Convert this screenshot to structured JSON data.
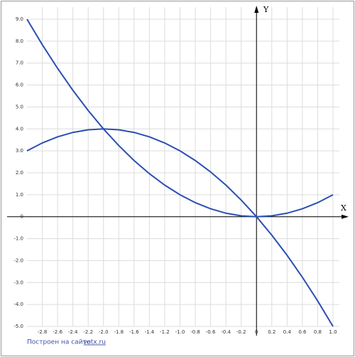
{
  "chart_data": {
    "type": "line",
    "x_label": "X",
    "y_label": "Y",
    "x": [
      -3,
      -2.8,
      -2.6,
      -2.4,
      -2.2,
      -2,
      -1.8,
      -1.6,
      -1.4,
      -1.2,
      -1,
      -0.8,
      -0.6,
      -0.4,
      -0.2,
      0,
      0.2,
      0.4,
      0.6,
      0.8,
      1
    ],
    "series": [
      {
        "color": "#2b4fb3",
        "values": [
          9,
          7.84,
          6.76,
          5.76,
          4.84,
          4,
          3.24,
          2.56,
          1.96,
          1.44,
          1,
          0.64,
          0.36,
          0.16,
          0.04,
          0,
          0.04,
          0.16,
          0.36,
          0.64,
          1
        ]
      },
      {
        "color": "#2b4fb3",
        "values": [
          3,
          3.36,
          3.64,
          3.84,
          3.96,
          4,
          3.96,
          3.84,
          3.64,
          3.36,
          3,
          2.56,
          2.04,
          1.44,
          0.76,
          0,
          -0.84,
          -1.76,
          -2.76,
          -3.84,
          -5
        ]
      }
    ],
    "xlim": [
      -3,
      1
    ],
    "ylim": [
      -5,
      9
    ],
    "xticks": [
      -2.8,
      -2.6,
      -2.4,
      -2.2,
      {
        "value": -2,
        "label": "-2.0"
      },
      -1.8,
      -1.6,
      -1.4,
      -1.2,
      {
        "value": -1,
        "label": "-1.0"
      },
      -0.8,
      -0.6,
      -0.4,
      -0.2,
      0,
      0.2,
      0.4,
      0.6,
      0.8,
      {
        "value": 1,
        "label": "1.0"
      }
    ],
    "yticks": [
      {
        "value": 9,
        "label": "9.0"
      },
      {
        "value": 8,
        "label": "8.0"
      },
      {
        "value": 7,
        "label": "7.0"
      },
      {
        "value": 6,
        "label": "6.0"
      },
      {
        "value": 5,
        "label": "5.0"
      },
      {
        "value": 4,
        "label": "4.0"
      },
      {
        "value": 3,
        "label": "3.0"
      },
      {
        "value": 2,
        "label": "2.0"
      },
      {
        "value": 1,
        "label": "1.0"
      },
      0,
      {
        "value": -1,
        "label": "-1.0"
      },
      {
        "value": -2,
        "label": "-2.0"
      },
      {
        "value": -3,
        "label": "-3.0"
      },
      {
        "value": -4,
        "label": "-4.0"
      },
      {
        "value": -5,
        "label": "-5.0"
      }
    ],
    "grid": true,
    "footer": {
      "text": "Построен на сайте",
      "link": "yotx.ru"
    }
  }
}
